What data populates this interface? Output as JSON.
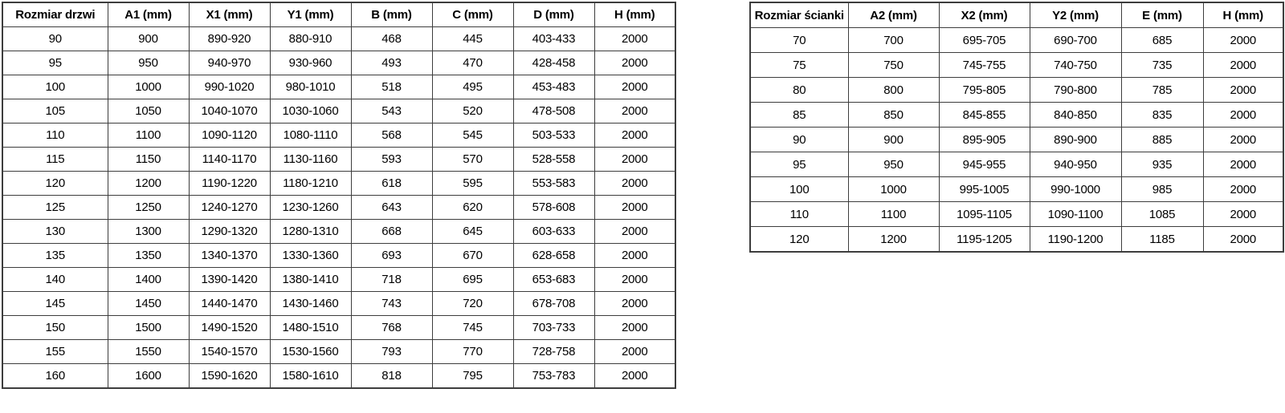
{
  "colors": {
    "border": "#3d3d3d",
    "text": "#000000",
    "background": "#ffffff"
  },
  "tables": [
    {
      "name": "door-size-table",
      "headers": [
        "Rozmiar drzwi",
        "A1 (mm)",
        "X1 (mm)",
        "Y1 (mm)",
        "B (mm)",
        "C (mm)",
        "D (mm)",
        "H (mm)"
      ],
      "rows": [
        [
          "90",
          "900",
          "890-920",
          "880-910",
          "468",
          "445",
          "403-433",
          "2000"
        ],
        [
          "95",
          "950",
          "940-970",
          "930-960",
          "493",
          "470",
          "428-458",
          "2000"
        ],
        [
          "100",
          "1000",
          "990-1020",
          "980-1010",
          "518",
          "495",
          "453-483",
          "2000"
        ],
        [
          "105",
          "1050",
          "1040-1070",
          "1030-1060",
          "543",
          "520",
          "478-508",
          "2000"
        ],
        [
          "110",
          "1100",
          "1090-1120",
          "1080-1110",
          "568",
          "545",
          "503-533",
          "2000"
        ],
        [
          "115",
          "1150",
          "1140-1170",
          "1130-1160",
          "593",
          "570",
          "528-558",
          "2000"
        ],
        [
          "120",
          "1200",
          "1190-1220",
          "1180-1210",
          "618",
          "595",
          "553-583",
          "2000"
        ],
        [
          "125",
          "1250",
          "1240-1270",
          "1230-1260",
          "643",
          "620",
          "578-608",
          "2000"
        ],
        [
          "130",
          "1300",
          "1290-1320",
          "1280-1310",
          "668",
          "645",
          "603-633",
          "2000"
        ],
        [
          "135",
          "1350",
          "1340-1370",
          "1330-1360",
          "693",
          "670",
          "628-658",
          "2000"
        ],
        [
          "140",
          "1400",
          "1390-1420",
          "1380-1410",
          "718",
          "695",
          "653-683",
          "2000"
        ],
        [
          "145",
          "1450",
          "1440-1470",
          "1430-1460",
          "743",
          "720",
          "678-708",
          "2000"
        ],
        [
          "150",
          "1500",
          "1490-1520",
          "1480-1510",
          "768",
          "745",
          "703-733",
          "2000"
        ],
        [
          "155",
          "1550",
          "1540-1570",
          "1530-1560",
          "793",
          "770",
          "728-758",
          "2000"
        ],
        [
          "160",
          "1600",
          "1590-1620",
          "1580-1610",
          "818",
          "795",
          "753-783",
          "2000"
        ]
      ]
    },
    {
      "name": "wall-size-table",
      "headers": [
        "Rozmiar ścianki",
        "A2 (mm)",
        "X2 (mm)",
        "Y2 (mm)",
        "E (mm)",
        "H (mm)"
      ],
      "rows": [
        [
          "70",
          "700",
          "695-705",
          "690-700",
          "685",
          "2000"
        ],
        [
          "75",
          "750",
          "745-755",
          "740-750",
          "735",
          "2000"
        ],
        [
          "80",
          "800",
          "795-805",
          "790-800",
          "785",
          "2000"
        ],
        [
          "85",
          "850",
          "845-855",
          "840-850",
          "835",
          "2000"
        ],
        [
          "90",
          "900",
          "895-905",
          "890-900",
          "885",
          "2000"
        ],
        [
          "95",
          "950",
          "945-955",
          "940-950",
          "935",
          "2000"
        ],
        [
          "100",
          "1000",
          "995-1005",
          "990-1000",
          "985",
          "2000"
        ],
        [
          "110",
          "1100",
          "1095-1105",
          "1090-1100",
          "1085",
          "2000"
        ],
        [
          "120",
          "1200",
          "1195-1205",
          "1190-1200",
          "1185",
          "2000"
        ]
      ]
    }
  ]
}
